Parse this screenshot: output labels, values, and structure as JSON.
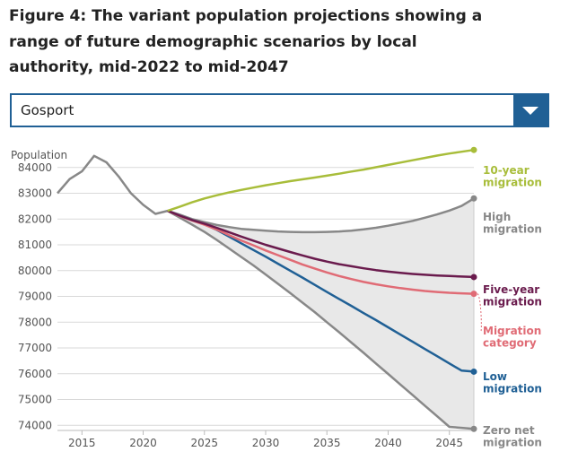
{
  "title": "Figure 4: The variant population projections showing a range of future demographic scenarios by local authority, mid-2022 to mid-2047",
  "dropdown": {
    "selected": "Gosport"
  },
  "colors": {
    "accent": "#206095",
    "grid": "#d9d9d9",
    "band": "#e8e8e8",
    "historical": "#888888",
    "ten_year": "#a8bd3a",
    "high": "#888888",
    "five_year": "#6a1b4d",
    "category": "#e06b75",
    "low": "#206095",
    "zero": "#888888"
  },
  "chart_data": {
    "type": "line",
    "ylabel": "Population",
    "xlim": [
      2013,
      2047
    ],
    "ylim": [
      73800,
      85000
    ],
    "x_ticks": [
      2015,
      2020,
      2025,
      2030,
      2035,
      2040,
      2045
    ],
    "y_ticks": [
      74000,
      75000,
      76000,
      77000,
      78000,
      79000,
      80000,
      81000,
      82000,
      83000,
      84000
    ],
    "historical": {
      "x": [
        2013,
        2014,
        2015,
        2016,
        2017,
        2018,
        2019,
        2020,
        2021,
        2022
      ],
      "values": [
        83000,
        83550,
        83850,
        84450,
        84200,
        83650,
        83000,
        82550,
        82200,
        82320
      ]
    },
    "projection_x": [
      2022,
      2023,
      2024,
      2025,
      2026,
      2027,
      2028,
      2029,
      2030,
      2031,
      2032,
      2033,
      2034,
      2035,
      2036,
      2037,
      2038,
      2039,
      2040,
      2041,
      2042,
      2043,
      2044,
      2045,
      2046,
      2047
    ],
    "band_series": [
      "High migration",
      "Zero net migration"
    ],
    "series": [
      {
        "name": "10-year migration",
        "label_lines": [
          "10-year",
          "migration"
        ],
        "color_key": "ten_year",
        "values": [
          82320,
          82480,
          82650,
          82800,
          82920,
          83030,
          83130,
          83220,
          83310,
          83390,
          83470,
          83540,
          83610,
          83680,
          83760,
          83840,
          83920,
          84010,
          84100,
          84190,
          84280,
          84370,
          84460,
          84540,
          84610,
          84680
        ]
      },
      {
        "name": "High migration",
        "label_lines": [
          "High",
          "migration"
        ],
        "color_key": "high",
        "values": [
          82320,
          82170,
          82000,
          81880,
          81770,
          81690,
          81620,
          81580,
          81550,
          81520,
          81500,
          81490,
          81490,
          81500,
          81520,
          81550,
          81600,
          81660,
          81740,
          81830,
          81930,
          82050,
          82180,
          82330,
          82510,
          82800
        ]
      },
      {
        "name": "Five-year migration",
        "label_lines": [
          "Five-year",
          "migration"
        ],
        "color_key": "five_year",
        "values": [
          82320,
          82130,
          81960,
          81820,
          81660,
          81490,
          81320,
          81160,
          81000,
          80860,
          80720,
          80590,
          80460,
          80350,
          80250,
          80170,
          80090,
          80020,
          79960,
          79910,
          79870,
          79840,
          79810,
          79790,
          79770,
          79750
        ]
      },
      {
        "name": "Migration category",
        "label_lines": [
          "Migration",
          "category"
        ],
        "color_key": "category",
        "values": [
          82320,
          82120,
          81940,
          81780,
          81590,
          81380,
          81170,
          80980,
          80780,
          80600,
          80420,
          80240,
          80080,
          79930,
          79790,
          79670,
          79560,
          79470,
          79390,
          79320,
          79260,
          79210,
          79170,
          79140,
          79120,
          79100
        ]
      },
      {
        "name": "Low migration",
        "label_lines": [
          "Low",
          "migration"
        ],
        "color_key": "low",
        "values": [
          82320,
          82130,
          81960,
          81800,
          81580,
          81320,
          81060,
          80800,
          80540,
          80270,
          80000,
          79730,
          79450,
          79170,
          78900,
          78630,
          78350,
          78080,
          77800,
          77520,
          77240,
          76960,
          76680,
          76400,
          76120,
          76080
        ]
      },
      {
        "name": "Zero net migration",
        "label_lines": [
          "Zero net",
          "migration"
        ],
        "color_key": "zero",
        "values": [
          82320,
          82050,
          81780,
          81500,
          81190,
          80860,
          80530,
          80200,
          79850,
          79490,
          79130,
          78760,
          78390,
          78000,
          77610,
          77210,
          76810,
          76400,
          75990,
          75580,
          75170,
          74760,
          74350,
          73940,
          73900,
          73860
        ]
      }
    ]
  }
}
